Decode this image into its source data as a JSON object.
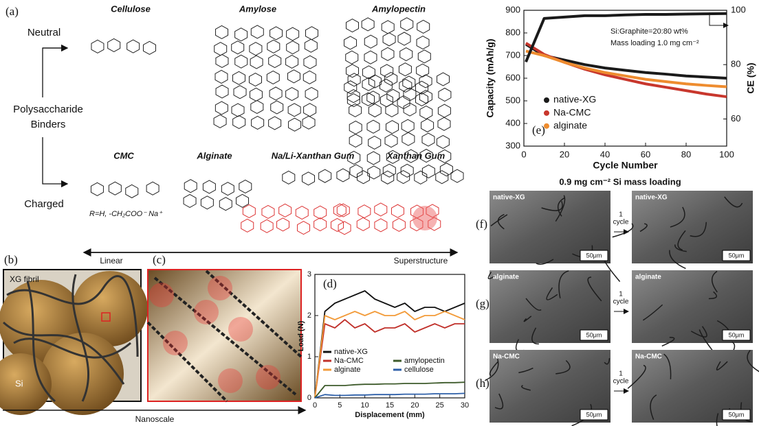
{
  "panel_a": {
    "label": "(a)",
    "neutral": "Neutral",
    "charged": "Charged",
    "binders": [
      "Polysaccharide",
      "Binders"
    ],
    "neutral_molecules": [
      "Cellulose",
      "Amylose",
      "Amylopectin"
    ],
    "charged_molecules": [
      "CMC",
      "Alginate",
      "Na/Li-Xanthan Gum",
      "Xanthan Gum"
    ],
    "cmc_note": "R=H, -CH₂COO⁻ Na⁺",
    "scale_left": "Linear",
    "scale_right": "Superstructure"
  },
  "panel_b": {
    "label": "(b)",
    "fibril": "XG fibril",
    "particle": "Si"
  },
  "panel_c": {
    "label": "(c)",
    "scale": "Nanoscale"
  },
  "sem": {
    "title": "0.9 mg cm⁻² Si mass loading",
    "arrow": [
      "1",
      "cycle"
    ],
    "scale_bar": "50μm",
    "rows": [
      {
        "label": "(f)",
        "binder": "native-XG"
      },
      {
        "label": "(g)",
        "binder": "alginate"
      },
      {
        "label": "(h)",
        "binder": "Na-CMC"
      }
    ]
  },
  "chart_data": [
    {
      "type": "line",
      "panel": "(e)",
      "xlabel": "Cycle Number",
      "ylabel": "Capacity (mAh/g)",
      "y2label": "CE (%)",
      "annotations": [
        "Si:Graphite=20:80 wt%",
        "Mass loading 1.0 mg cm⁻²"
      ],
      "x": [
        1,
        10,
        20,
        30,
        40,
        50,
        60,
        70,
        80,
        90,
        100
      ],
      "xlim": [
        0,
        100
      ],
      "xticks": [
        0,
        20,
        40,
        60,
        80,
        100
      ],
      "ylim": [
        300,
        900
      ],
      "yticks": [
        300,
        400,
        500,
        600,
        700,
        800,
        900
      ],
      "y2lim": [
        50,
        100
      ],
      "y2ticks": [
        60,
        80,
        100
      ],
      "series": [
        {
          "name": "native-XG",
          "color": "#1a1a1a",
          "values": [
            750,
            700,
            680,
            660,
            645,
            635,
            625,
            618,
            610,
            605,
            600
          ]
        },
        {
          "name": "Na-CMC",
          "color": "#c8372d",
          "values": [
            755,
            705,
            670,
            640,
            615,
            595,
            575,
            560,
            545,
            530,
            518
          ]
        },
        {
          "name": "alginate",
          "color": "#ee8c2f",
          "values": [
            720,
            700,
            670,
            645,
            625,
            610,
            595,
            585,
            575,
            568,
            562
          ]
        },
        {
          "color": "#1a1a1a",
          "axis": "y2",
          "values": [
            81,
            97,
            97.5,
            98,
            98,
            98.3,
            98.5,
            98.5,
            98.6,
            98.7,
            98.8
          ]
        }
      ]
    },
    {
      "type": "line",
      "panel": "(d)",
      "xlabel": "Displacement (mm)",
      "ylabel": "Load (N)",
      "x": [
        0,
        2,
        4,
        6,
        8,
        10,
        12,
        14,
        16,
        18,
        20,
        22,
        24,
        26,
        28,
        30
      ],
      "xlim": [
        0,
        30
      ],
      "xticks": [
        0,
        5,
        10,
        15,
        20,
        25,
        30
      ],
      "ylim": [
        0,
        3
      ],
      "yticks": [
        0,
        1,
        2,
        3
      ],
      "series": [
        {
          "name": "native-XG",
          "color": "#111111",
          "values": [
            0,
            2.1,
            2.3,
            2.4,
            2.5,
            2.6,
            2.4,
            2.3,
            2.2,
            2.3,
            2.1,
            2.2,
            2.2,
            2.1,
            2.2,
            2.3
          ]
        },
        {
          "name": "Na-CMC",
          "color": "#c0302a",
          "values": [
            0,
            1.8,
            1.7,
            1.9,
            1.7,
            1.8,
            1.6,
            1.7,
            1.7,
            1.8,
            1.6,
            1.7,
            1.8,
            1.7,
            1.8,
            1.8
          ]
        },
        {
          "name": "alginate",
          "color": "#f29a38",
          "values": [
            0,
            2,
            1.9,
            2,
            2.1,
            2,
            2.1,
            2,
            2,
            2.1,
            1.9,
            2,
            2,
            2.1,
            2,
            1.9
          ]
        },
        {
          "name": "amylopectin",
          "color": "#3d5a2a",
          "values": [
            0,
            0.3,
            0.3,
            0.3,
            0.32,
            0.33,
            0.33,
            0.34,
            0.34,
            0.35,
            0.35,
            0.35,
            0.36,
            0.37,
            0.37,
            0.38
          ]
        },
        {
          "name": "cellulose",
          "color": "#2d5fa8",
          "values": [
            0,
            0.08,
            0.06,
            0.06,
            0.07,
            0.07,
            0.08,
            0.08,
            0.08,
            0.09,
            0.09,
            0.09,
            0.1,
            0.1,
            0.1,
            0.11
          ]
        }
      ]
    }
  ]
}
